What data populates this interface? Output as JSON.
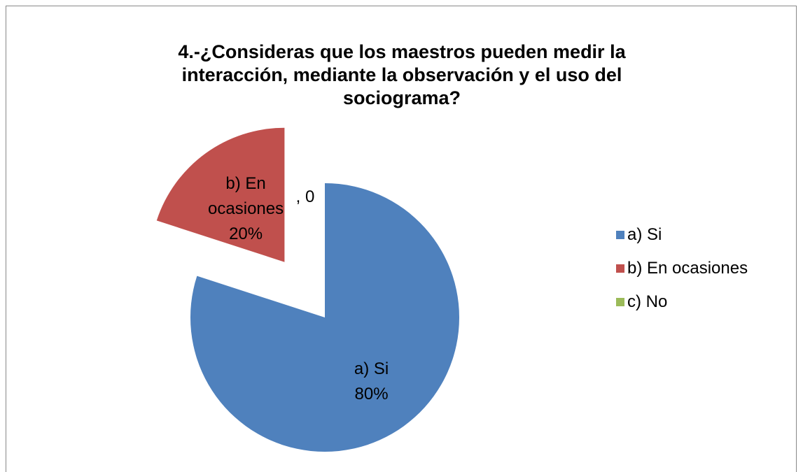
{
  "chart_data": {
    "type": "pie",
    "title": "4.-¿Consideras que los maestros pueden medir la interacción, mediante la observación y el uso del sociograma?",
    "categories": [
      "a) Si",
      "b) En ocasiones",
      "c) No"
    ],
    "values": [
      80,
      20,
      0
    ],
    "value_labels": [
      "80%",
      "20%",
      ", 0"
    ],
    "colors": [
      "#4f81bd",
      "#c0504d",
      "#9bbb59"
    ],
    "legend": "right"
  }
}
